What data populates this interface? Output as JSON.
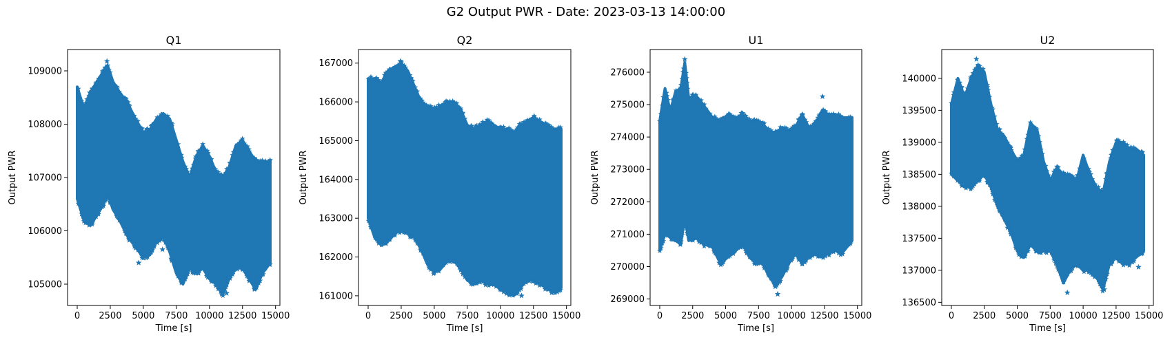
{
  "figure": {
    "suptitle": "G2 Output PWR - Date: 2023-03-13 14:00:00"
  },
  "chart_data": [
    {
      "type": "scatter",
      "marker": "star",
      "color": "#1f77b4",
      "title": "Q1",
      "xlabel": "Time [s]",
      "ylabel": "Output PWR",
      "xlim": [
        -730,
        15330
      ],
      "ylim": [
        104600,
        109400
      ],
      "xticks": [
        0,
        2500,
        5000,
        7500,
        10000,
        12500,
        15000
      ],
      "yticks": [
        105000,
        106000,
        107000,
        108000,
        109000
      ],
      "x": [
        0,
        500,
        1000,
        1500,
        2000,
        2300,
        2700,
        3200,
        3800,
        4400,
        5000,
        5500,
        6000,
        6500,
        7000,
        7500,
        8000,
        8500,
        9000,
        9500,
        10000,
        10500,
        11000,
        11500,
        12000,
        12500,
        13000,
        13500,
        14000,
        14600
      ],
      "upper": [
        108700,
        108300,
        108600,
        108800,
        109000,
        109100,
        108800,
        108600,
        108400,
        108100,
        107850,
        107900,
        108100,
        108200,
        108100,
        107700,
        107300,
        107000,
        107400,
        107600,
        107400,
        107100,
        107000,
        107200,
        107600,
        107700,
        107500,
        107300,
        107300,
        107300
      ],
      "lower": [
        106600,
        106200,
        106100,
        106300,
        106500,
        106700,
        106400,
        106200,
        105900,
        105700,
        105500,
        105550,
        105800,
        105900,
        105600,
        105200,
        105000,
        105300,
        105200,
        105300,
        105100,
        105000,
        104800,
        105100,
        105300,
        105300,
        105100,
        104900,
        105200,
        105400
      ],
      "outliers": [
        [
          2250,
          109180
        ],
        [
          4650,
          105400
        ],
        [
          6450,
          105650
        ],
        [
          11300,
          104830
        ]
      ]
    },
    {
      "type": "scatter",
      "marker": "star",
      "color": "#1f77b4",
      "title": "Q2",
      "xlabel": "Time [s]",
      "ylabel": "Output PWR",
      "xlim": [
        -730,
        15330
      ],
      "ylim": [
        160750,
        167350
      ],
      "xticks": [
        0,
        2500,
        5000,
        7500,
        10000,
        12500,
        15000
      ],
      "yticks": [
        161000,
        162000,
        163000,
        164000,
        165000,
        166000,
        167000
      ],
      "x": [
        0,
        500,
        1000,
        1500,
        2000,
        2500,
        3000,
        3500,
        4000,
        4500,
        5000,
        5500,
        6000,
        6500,
        7000,
        7500,
        8000,
        8500,
        9000,
        9500,
        10000,
        10500,
        11000,
        11500,
        12000,
        12500,
        13000,
        13500,
        14000,
        14600
      ],
      "upper": [
        166600,
        166600,
        166500,
        166800,
        166900,
        167000,
        166800,
        166400,
        166000,
        165900,
        165800,
        165900,
        166000,
        166000,
        165800,
        165400,
        165300,
        165400,
        165500,
        165400,
        165300,
        165300,
        165200,
        165400,
        165500,
        165600,
        165500,
        165400,
        165300,
        165300
      ],
      "lower": [
        163000,
        162500,
        162300,
        162400,
        162600,
        162700,
        162600,
        162500,
        162200,
        161800,
        161600,
        161700,
        161900,
        161900,
        161700,
        161400,
        161300,
        161400,
        161300,
        161300,
        161200,
        161100,
        161000,
        161200,
        161400,
        161400,
        161300,
        161200,
        161100,
        161200
      ],
      "outliers": [
        [
          2450,
          167050
        ],
        [
          11600,
          161000
        ],
        [
          14300,
          161100
        ]
      ]
    },
    {
      "type": "scatter",
      "marker": "star",
      "color": "#1f77b4",
      "title": "U1",
      "xlabel": "Time [s]",
      "ylabel": "Output PWR",
      "xlim": [
        -730,
        15330
      ],
      "ylim": [
        268800,
        276700
      ],
      "xticks": [
        0,
        2500,
        5000,
        7500,
        10000,
        12500,
        15000
      ],
      "yticks": [
        269000,
        270000,
        271000,
        272000,
        273000,
        274000,
        275000,
        276000
      ],
      "x": [
        0,
        400,
        800,
        1200,
        1600,
        1900,
        2200,
        2700,
        3300,
        4000,
        4600,
        5200,
        5800,
        6300,
        6800,
        7300,
        7800,
        8300,
        8800,
        9300,
        9800,
        10300,
        10800,
        11300,
        11800,
        12300,
        12800,
        13300,
        13800,
        14600
      ],
      "upper": [
        274500,
        275500,
        274800,
        275400,
        275500,
        276300,
        275200,
        275300,
        275000,
        274600,
        274500,
        274700,
        274600,
        274700,
        274500,
        274500,
        274400,
        274200,
        274100,
        274300,
        274200,
        274300,
        274700,
        274300,
        274400,
        274800,
        274700,
        274700,
        274600,
        274600
      ],
      "lower": [
        270500,
        271000,
        270900,
        270800,
        270700,
        271500,
        270800,
        270900,
        270700,
        270600,
        270100,
        270300,
        270500,
        270700,
        270300,
        270100,
        270100,
        269700,
        269400,
        269700,
        270100,
        270400,
        270100,
        270300,
        270400,
        270300,
        270400,
        270500,
        270400,
        270800
      ],
      "outliers": [
        [
          1900,
          276400
        ],
        [
          8950,
          269150
        ],
        [
          12350,
          275250
        ]
      ]
    },
    {
      "type": "scatter",
      "marker": "star",
      "color": "#1f77b4",
      "title": "U2",
      "xlabel": "Time [s]",
      "ylabel": "Output PWR",
      "xlim": [
        -730,
        15330
      ],
      "ylim": [
        136450,
        140450
      ],
      "xticks": [
        0,
        2500,
        5000,
        7500,
        10000,
        12500,
        15000
      ],
      "yticks": [
        136500,
        137000,
        137500,
        138000,
        138500,
        139000,
        139500,
        140000
      ],
      "x": [
        0,
        500,
        1000,
        1500,
        2000,
        2500,
        3000,
        3500,
        4000,
        4500,
        5000,
        5500,
        6000,
        6500,
        7000,
        7500,
        8000,
        8500,
        9000,
        9500,
        10000,
        10500,
        11000,
        11500,
        12000,
        12500,
        13000,
        13500,
        14000,
        14600
      ],
      "upper": [
        139600,
        140000,
        139700,
        140000,
        140200,
        140100,
        139600,
        139200,
        139100,
        138900,
        138700,
        138800,
        139300,
        139200,
        138700,
        138400,
        138600,
        138500,
        138500,
        138400,
        138800,
        138500,
        138300,
        138200,
        138700,
        139000,
        139000,
        138900,
        138900,
        138800
      ],
      "lower": [
        138500,
        138400,
        138300,
        138300,
        138400,
        138500,
        138300,
        138000,
        137800,
        137600,
        137300,
        137200,
        137400,
        137300,
        137300,
        137300,
        137100,
        136800,
        137000,
        137100,
        137000,
        137000,
        136900,
        136700,
        137100,
        137200,
        137100,
        137100,
        137200,
        137300
      ],
      "outliers": [
        [
          1900,
          140300
        ],
        [
          8800,
          136650
        ],
        [
          11600,
          136700
        ],
        [
          14200,
          137050
        ]
      ]
    }
  ]
}
